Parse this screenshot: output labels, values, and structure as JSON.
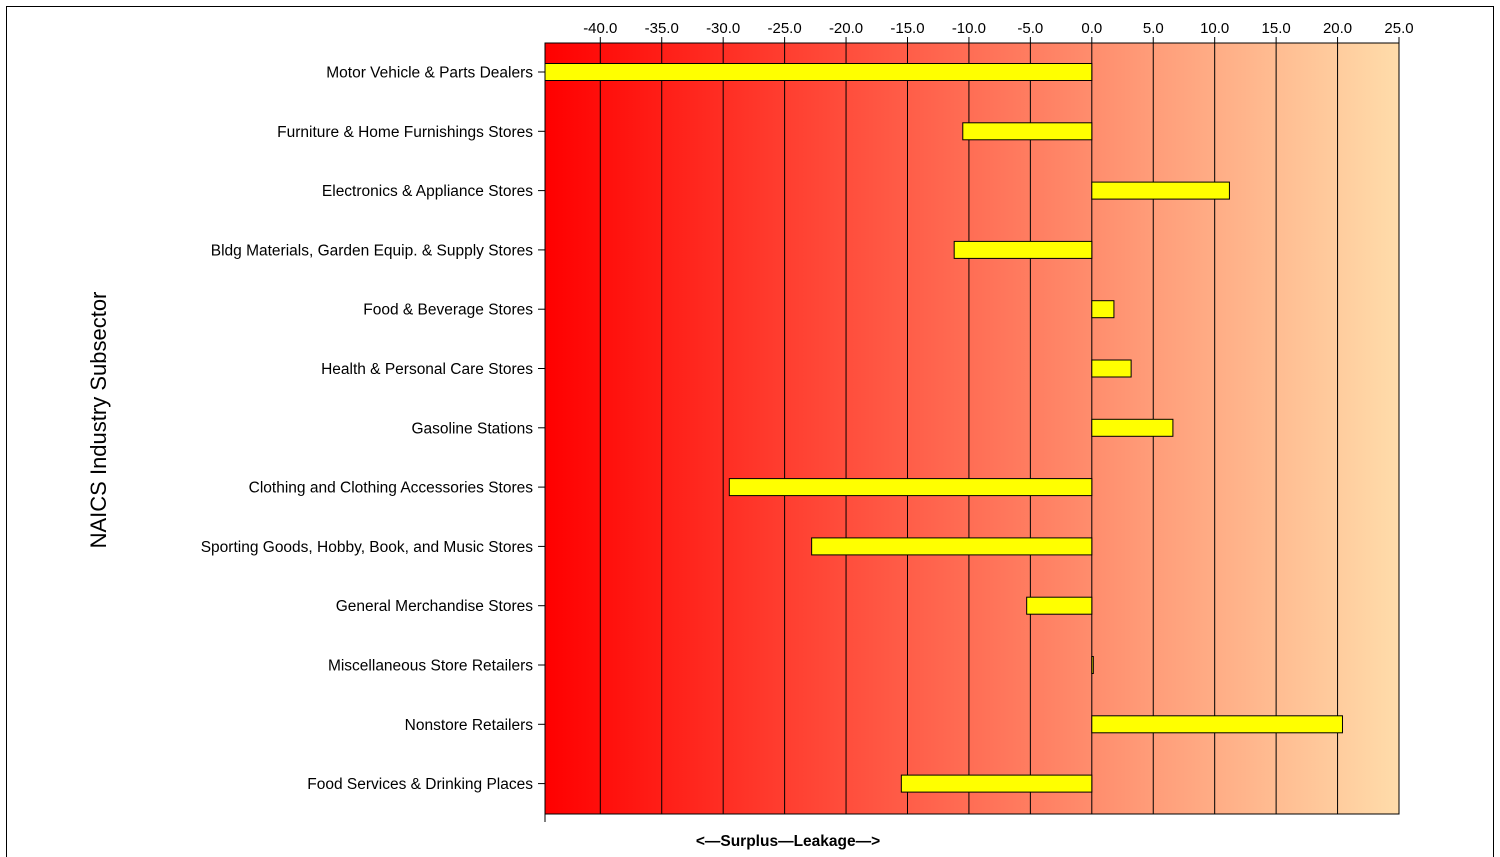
{
  "chart_data": {
    "type": "bar",
    "orientation": "horizontal",
    "categories": [
      "Motor Vehicle & Parts Dealers",
      "Furniture & Home Furnishings Stores",
      "Electronics & Appliance Stores",
      "Bldg Materials, Garden Equip. & Supply Stores",
      "Food & Beverage Stores",
      "Health & Personal Care Stores",
      "Gasoline Stations",
      "Clothing and Clothing Accessories Stores",
      "Sporting Goods, Hobby, Book, and Music Stores",
      "General Merchandise Stores",
      "Miscellaneous Store Retailers",
      "Nonstore Retailers",
      "Food Services & Drinking Places"
    ],
    "values": [
      -44.5,
      -10.5,
      11.2,
      -11.2,
      1.8,
      3.2,
      6.6,
      -29.5,
      -22.8,
      -5.3,
      0.1,
      20.4,
      -15.5
    ],
    "xlim": [
      -44.5,
      25.0
    ],
    "xticks": [
      -40,
      -35,
      -30,
      -25,
      -20,
      -15,
      -10,
      -5,
      0,
      5,
      10,
      15,
      20,
      25
    ],
    "xtick_labels": [
      "-40.0",
      "-35.0",
      "-30.0",
      "-25.0",
      "-20.0",
      "-15.0",
      "-10.0",
      "-5.0",
      "0.0",
      "5.0",
      "10.0",
      "15.0",
      "20.0",
      "25.0"
    ],
    "xaxis_position": "top",
    "title": "",
    "xlabel": "<—Surplus—Leakage—>",
    "ylabel": "NAICS Industry Subsector",
    "grid": true,
    "legend": "none",
    "colors": {
      "bar_fill": "#ffff00",
      "bar_stroke": "#000000",
      "background_left": "#ff0000",
      "background_right": "#ffdcaa"
    }
  }
}
